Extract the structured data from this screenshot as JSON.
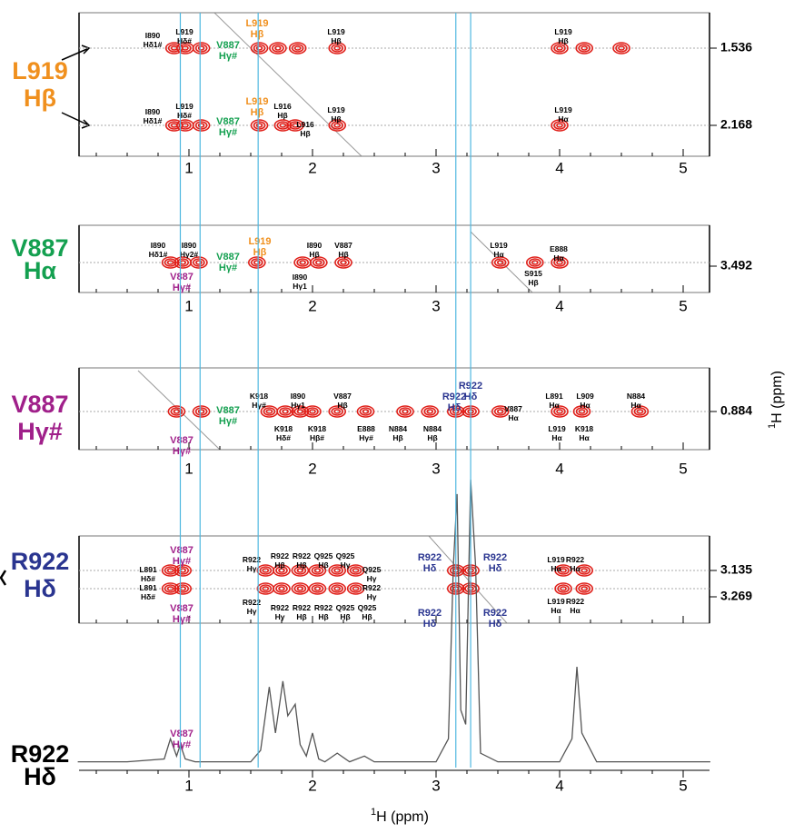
{
  "x_axis": {
    "ticks": [
      1,
      2,
      3,
      4,
      5
    ],
    "label_sup": "1",
    "label": "H  (ppm)"
  },
  "y_axis": {
    "label_sup": "1",
    "label": "H  (ppm)"
  },
  "panels": [
    {
      "label": [
        "L919",
        "Hβ"
      ],
      "color": "#f0901e",
      "shifts": [
        1.536,
        2.168
      ],
      "peaks": [
        [
          0.88,
          0.97,
          1.1,
          1.57,
          1.72,
          1.88,
          2.2,
          4.0,
          4.2,
          4.5
        ],
        [
          0.88,
          0.97,
          1.1,
          1.57,
          1.76,
          1.86,
          2.2,
          4.0
        ]
      ],
      "annotations": [
        {
          "lines": [
            "I890",
            "Hδ1#"
          ]
        },
        {
          "lines": [
            "L919",
            "Hδ#"
          ]
        },
        {
          "lines": [
            "V887",
            "Hγ#"
          ],
          "color": "#14a050"
        },
        {
          "lines": [
            "L919",
            "Hβ"
          ],
          "color": "#f0901e"
        },
        {
          "lines": [
            "L919",
            "Hβ"
          ]
        },
        {
          "lines": [
            "L919",
            "Hβ"
          ]
        },
        {
          "lines": [
            "I890",
            "Hδ1#"
          ]
        },
        {
          "lines": [
            "L919",
            "Hδ#"
          ]
        },
        {
          "lines": [
            "V887",
            "Hγ#"
          ],
          "color": "#14a050"
        },
        {
          "lines": [
            "L919",
            "Hβ"
          ],
          "color": "#f0901e"
        },
        {
          "lines": [
            "L916",
            "Hβ"
          ]
        },
        {
          "lines": [
            "L916",
            "Hβ"
          ]
        },
        {
          "lines": [
            "L919",
            "Hβ"
          ]
        },
        {
          "lines": [
            "L919",
            "Hα"
          ]
        }
      ]
    },
    {
      "label": [
        "V887",
        "Hα"
      ],
      "color": "#14a050",
      "shifts": [
        3.492
      ],
      "peaks": [
        [
          0.85,
          0.95,
          1.08,
          1.55,
          1.92,
          2.05,
          2.25,
          3.52,
          3.8,
          4.0
        ]
      ],
      "annotations": [
        {
          "lines": [
            "I890",
            "Hδ1#"
          ]
        },
        {
          "lines": [
            "I890",
            "Hγ2#"
          ]
        },
        {
          "lines": [
            "V887",
            "Hγ#"
          ],
          "color": "#a0208a"
        },
        {
          "lines": [
            "V887",
            "Hγ#"
          ],
          "color": "#14a050"
        },
        {
          "lines": [
            "L919",
            "Hβ"
          ],
          "color": "#f0901e"
        },
        {
          "lines": [
            "I890",
            "Hβ"
          ]
        },
        {
          "lines": [
            "I890",
            "Hγ1"
          ]
        },
        {
          "lines": [
            "V887",
            "Hβ"
          ]
        },
        {
          "lines": [
            "L919",
            "Hα"
          ]
        },
        {
          "lines": [
            "S915",
            "Hβ"
          ]
        },
        {
          "lines": [
            "E888",
            "Hα"
          ]
        }
      ]
    },
    {
      "label": [
        "V887",
        "Hγ#"
      ],
      "color": "#a0208a",
      "shifts": [
        0.884
      ],
      "peaks": [
        [
          0.9,
          1.1,
          1.65,
          1.78,
          1.9,
          2.0,
          2.2,
          2.43,
          2.75,
          2.95,
          3.16,
          3.28,
          3.52,
          4.0,
          4.18,
          4.65
        ]
      ],
      "annotations": [
        {
          "lines": [
            "V887",
            "Hγ#"
          ],
          "color": "#14a050"
        },
        {
          "lines": [
            "K918",
            "Hγ#"
          ]
        },
        {
          "lines": [
            "I890",
            "Hγ1"
          ]
        },
        {
          "lines": [
            "V887",
            "Hβ"
          ]
        },
        {
          "lines": [
            "K918",
            "Hδ#"
          ]
        },
        {
          "lines": [
            "K918",
            "Hβ#"
          ]
        },
        {
          "lines": [
            "E888",
            "Hγ#"
          ]
        },
        {
          "lines": [
            "N884",
            "Hβ"
          ]
        },
        {
          "lines": [
            "N884",
            "Hβ"
          ]
        },
        {
          "lines": [
            "R922",
            "Hδ"
          ],
          "color": "#2a3590"
        },
        {
          "lines": [
            "R922",
            "Hδ"
          ],
          "color": "#2a3590"
        },
        {
          "lines": [
            "V887",
            "Hα"
          ]
        },
        {
          "lines": [
            "L891",
            "Hα"
          ]
        },
        {
          "lines": [
            "L909",
            "Hα"
          ]
        },
        {
          "lines": [
            "N884",
            "Hα"
          ]
        },
        {
          "lines": [
            "L919",
            "Hα"
          ]
        },
        {
          "lines": [
            "K918",
            "Hα"
          ]
        },
        {
          "lines": [
            "V887",
            "Hγ#"
          ],
          "color": "#a0208a"
        }
      ]
    },
    {
      "label": [
        "R922",
        "Hδ"
      ],
      "color": "#2a3590",
      "shifts": [
        3.135,
        3.269
      ],
      "peaks": [
        [
          0.85,
          0.95,
          1.62,
          1.75,
          1.9,
          2.04,
          2.2,
          2.35,
          3.16,
          3.28,
          4.03,
          4.2
        ],
        [
          0.85,
          0.95,
          1.62,
          1.75,
          1.9,
          2.04,
          2.2,
          2.35,
          3.16,
          3.28,
          4.03,
          4.2
        ]
      ],
      "annotations": [
        {
          "lines": [
            "V887",
            "Hγ#"
          ],
          "color": "#a0208a"
        },
        {
          "lines": [
            "V887",
            "Hγ#"
          ],
          "color": "#a0208a"
        },
        {
          "lines": [
            "L891",
            "Hδ#"
          ]
        },
        {
          "lines": [
            "L891",
            "Hδ#"
          ]
        },
        {
          "lines": [
            "R922",
            "Hγ"
          ]
        },
        {
          "lines": [
            "R922",
            "Hγ"
          ]
        },
        {
          "lines": [
            "R922",
            "Hβ"
          ]
        },
        {
          "lines": [
            "R922",
            "Hβ"
          ]
        },
        {
          "lines": [
            "Q925",
            "Hβ"
          ]
        },
        {
          "lines": [
            "Q925",
            "Hγ"
          ]
        },
        {
          "lines": [
            "Q925",
            "Hγ"
          ]
        },
        {
          "lines": [
            "R922",
            "Hγ"
          ]
        },
        {
          "lines": [
            "R922",
            "Hγ"
          ]
        },
        {
          "lines": [
            "R922",
            "Hβ"
          ]
        },
        {
          "lines": [
            "R922",
            "Hβ"
          ]
        },
        {
          "lines": [
            "Q925",
            "Hβ"
          ]
        },
        {
          "lines": [
            "Q925",
            "Hβ"
          ]
        },
        {
          "lines": [
            "R922",
            "Hδ"
          ],
          "color": "#2a3590"
        },
        {
          "lines": [
            "R922",
            "Hδ"
          ],
          "color": "#2a3590"
        },
        {
          "lines": [
            "R922",
            "Hδ"
          ],
          "color": "#2a3590"
        },
        {
          "lines": [
            "R922",
            "Hδ"
          ],
          "color": "#2a3590"
        },
        {
          "lines": [
            "L919",
            "Hα"
          ]
        },
        {
          "lines": [
            "R922",
            "Hα"
          ]
        },
        {
          "lines": [
            "L919",
            "Hα"
          ]
        },
        {
          "lines": [
            "R922",
            "Hα"
          ]
        }
      ]
    }
  ],
  "trace": {
    "label": [
      "R922",
      "Hδ"
    ],
    "color": "#000000",
    "x": [
      0.1,
      0.5,
      0.8,
      0.85,
      0.9,
      0.93,
      0.97,
      1.05,
      1.5,
      1.58,
      1.65,
      1.7,
      1.76,
      1.8,
      1.86,
      1.9,
      1.95,
      2.0,
      2.05,
      2.1,
      2.2,
      2.3,
      2.42,
      2.5,
      3.0,
      3.1,
      3.14,
      3.17,
      3.2,
      3.24,
      3.28,
      3.32,
      3.36,
      3.5,
      4.0,
      4.1,
      4.14,
      4.18,
      4.3,
      5.22
    ],
    "y": [
      2,
      2,
      3,
      10,
      4,
      8,
      3,
      2,
      2,
      6,
      28,
      12,
      30,
      18,
      22,
      8,
      4,
      12,
      3,
      2,
      5,
      2,
      4,
      2,
      2,
      10,
      70,
      95,
      20,
      15,
      100,
      70,
      5,
      2,
      2,
      10,
      35,
      12,
      2,
      2
    ],
    "annotations": [
      {
        "lines": [
          "V887",
          "Hγ#"
        ],
        "color": "#a0208a"
      }
    ]
  },
  "guides": [
    0.93,
    1.09,
    1.56,
    3.16,
    3.28
  ]
}
